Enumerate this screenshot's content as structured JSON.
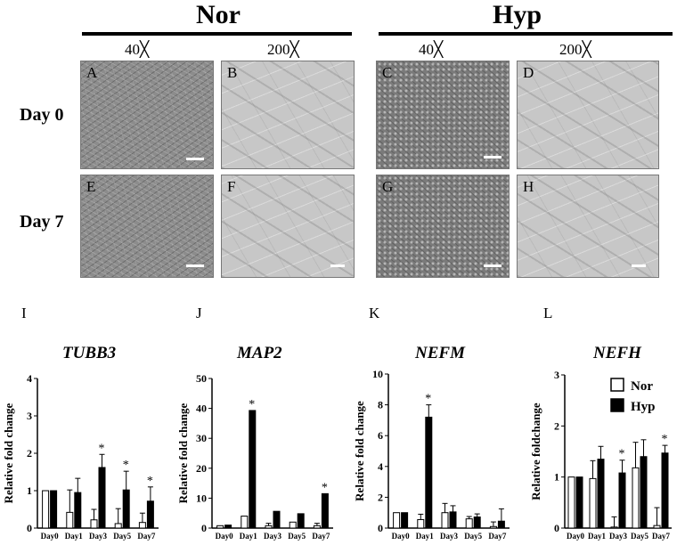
{
  "header": {
    "nor": "Nor",
    "hyp": "Hyp",
    "mag_low": "40╳",
    "mag_high": "200╳"
  },
  "rows": {
    "day0": "Day 0",
    "day7": "Day 7"
  },
  "micrographs": [
    {
      "letter": "A",
      "condition": "Nor",
      "magnification": "40x",
      "day": "Day 0"
    },
    {
      "letter": "B",
      "condition": "Nor",
      "magnification": "200x",
      "day": "Day 0"
    },
    {
      "letter": "C",
      "condition": "Hyp",
      "magnification": "40x",
      "day": "Day 0"
    },
    {
      "letter": "D",
      "condition": "Hyp",
      "magnification": "200x",
      "day": "Day 0"
    },
    {
      "letter": "E",
      "condition": "Nor",
      "magnification": "40x",
      "day": "Day 7"
    },
    {
      "letter": "F",
      "condition": "Nor",
      "magnification": "200x",
      "day": "Day 7"
    },
    {
      "letter": "G",
      "condition": "Hyp",
      "magnification": "40x",
      "day": "Day 7"
    },
    {
      "letter": "H",
      "condition": "Hyp",
      "magnification": "200x",
      "day": "Day 7"
    }
  ],
  "panel_letters": [
    "I",
    "J",
    "K",
    "L"
  ],
  "chart_data": [
    {
      "type": "bar",
      "title": "TUBB3",
      "ylabel": "Relative fold change",
      "xlabel": "",
      "categories": [
        "Day0",
        "Day1",
        "Day3",
        "Day5",
        "Day7"
      ],
      "ylim": [
        0,
        4
      ],
      "yticks": [
        "0",
        "1",
        "2",
        "3",
        "4"
      ],
      "series": [
        {
          "name": "Nor",
          "values": [
            1.0,
            0.42,
            0.22,
            0.12,
            0.15
          ],
          "errors": [
            0,
            0.6,
            0.28,
            0.4,
            0.25
          ]
        },
        {
          "name": "Hyp",
          "values": [
            1.0,
            0.95,
            1.62,
            1.02,
            0.72
          ],
          "errors": [
            0,
            0.38,
            0.35,
            0.5,
            0.38
          ]
        }
      ],
      "significance": [
        "",
        "",
        "*",
        "*",
        "*"
      ]
    },
    {
      "type": "bar",
      "title": "MAP2",
      "ylabel": "Relative fold change",
      "xlabel": "",
      "categories": [
        "Day0",
        "Day1",
        "Day3",
        "Day5",
        "Day7"
      ],
      "ylim": [
        0,
        50
      ],
      "yticks": [
        "0",
        "10",
        "20",
        "30",
        "40",
        "50"
      ],
      "series": [
        {
          "name": "Nor",
          "values": [
            0.8,
            4.0,
            0.8,
            2.0,
            0.8
          ],
          "errors": [
            0,
            0,
            0.8,
            0,
            0.8
          ]
        },
        {
          "name": "Hyp",
          "values": [
            1.0,
            39.3,
            5.6,
            4.8,
            11.5
          ],
          "errors": [
            0,
            0,
            0,
            0,
            0
          ]
        }
      ],
      "significance": [
        "",
        "*",
        "",
        "",
        "*"
      ]
    },
    {
      "type": "bar",
      "title": "NEFM",
      "ylabel": "Relative fold change",
      "xlabel": "",
      "categories": [
        "Day0",
        "Day1",
        "Day3",
        "Day5",
        "Day7"
      ],
      "ylim": [
        0,
        10
      ],
      "yticks": [
        "0",
        "2",
        "4",
        "6",
        "8",
        "10"
      ],
      "series": [
        {
          "name": "Nor",
          "values": [
            1.0,
            0.55,
            1.0,
            0.6,
            0.1
          ],
          "errors": [
            0,
            0.35,
            0.6,
            0.15,
            0.3
          ]
        },
        {
          "name": "Hyp",
          "values": [
            1.0,
            7.2,
            1.05,
            0.72,
            0.45
          ],
          "errors": [
            0,
            0.8,
            0.4,
            0.2,
            0.8
          ]
        }
      ],
      "significance": [
        "",
        "*",
        "",
        "",
        ""
      ]
    },
    {
      "type": "bar",
      "title": "NEFH",
      "ylabel": "Relative foldchange",
      "xlabel": "",
      "categories": [
        "Day0",
        "Day1",
        "Day3",
        "Day5",
        "Day7"
      ],
      "ylim": [
        0,
        3
      ],
      "yticks": [
        "0",
        "1",
        "2",
        "3"
      ],
      "series": [
        {
          "name": "Nor",
          "values": [
            1.0,
            0.97,
            0.02,
            1.18,
            0.05
          ],
          "errors": [
            0,
            0.35,
            0.2,
            0.5,
            0.35
          ]
        },
        {
          "name": "Hyp",
          "values": [
            1.0,
            1.35,
            1.08,
            1.4,
            1.47
          ],
          "errors": [
            0,
            0.25,
            0.25,
            0.33,
            0.15
          ]
        }
      ],
      "significance": [
        "",
        "",
        "*",
        "",
        "*"
      ],
      "legend": {
        "position": "top-right",
        "entries": [
          "Nor",
          "Hyp"
        ]
      }
    }
  ],
  "colors": {
    "nor_fill": "#ffffff",
    "hyp_fill": "#000000",
    "axis": "#000000"
  }
}
